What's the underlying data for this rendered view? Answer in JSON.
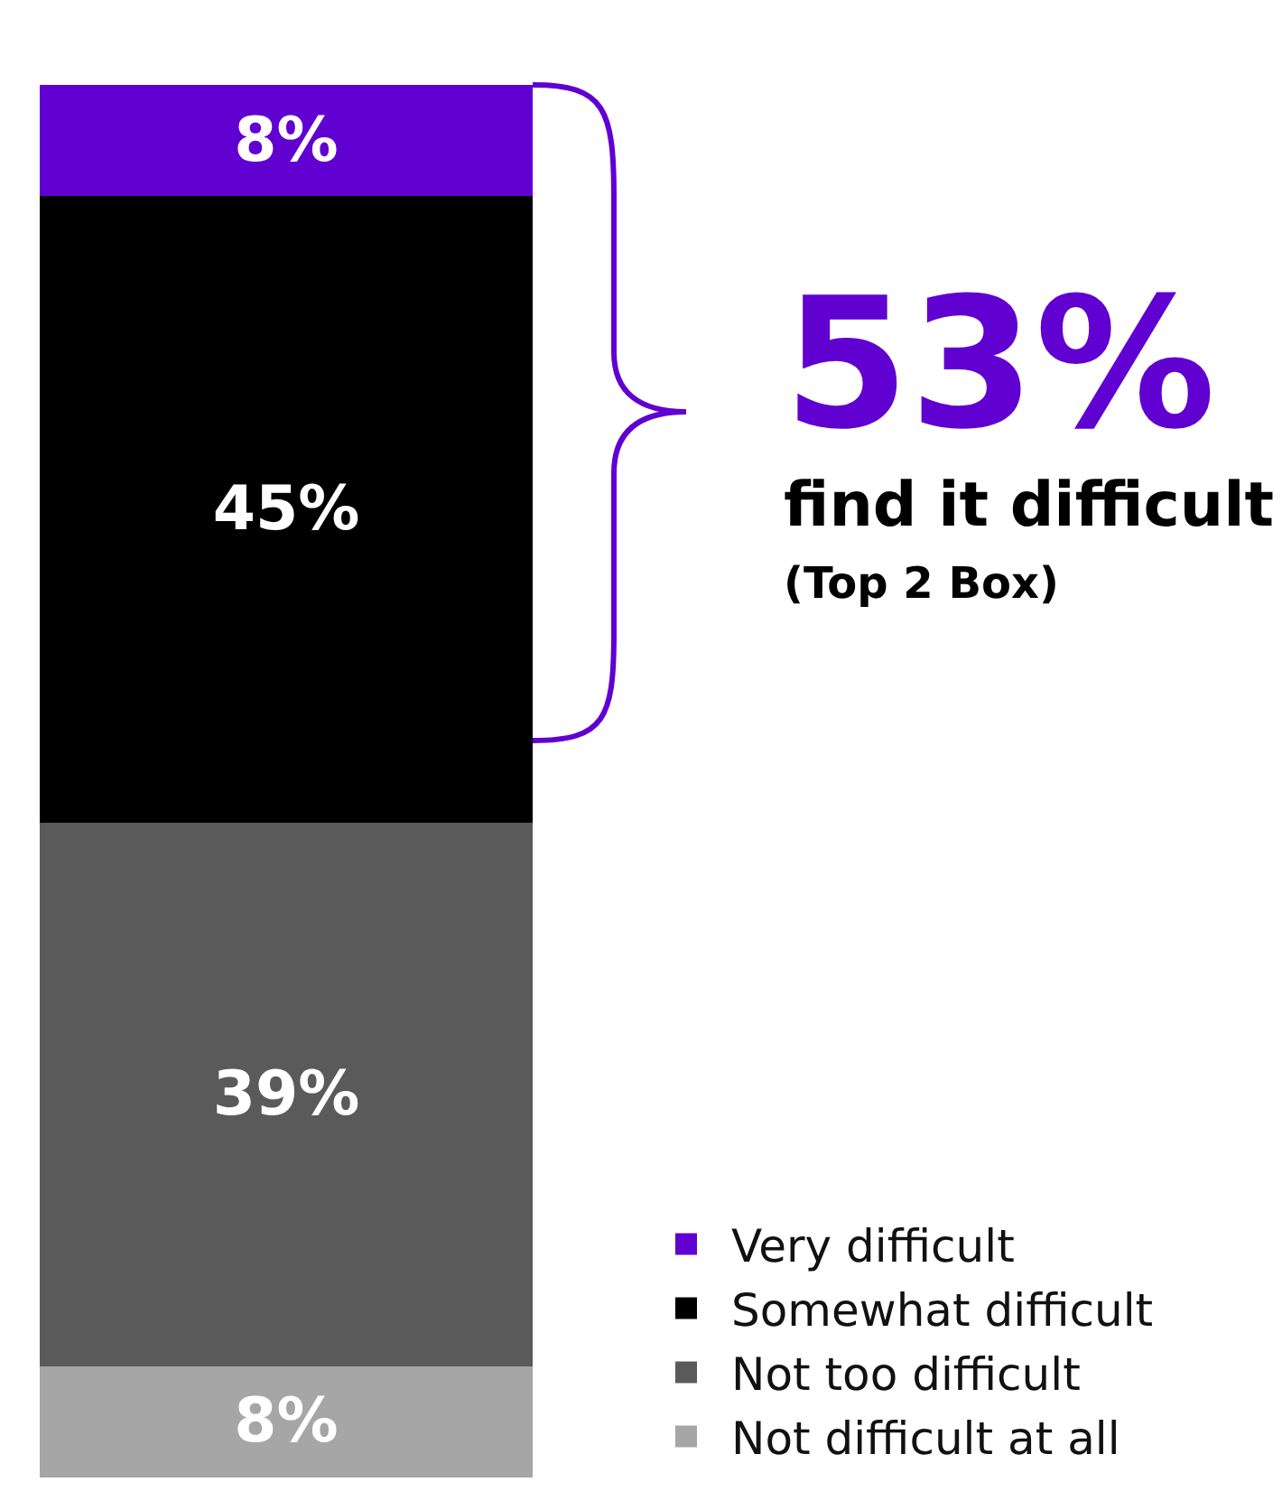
{
  "chart_data": {
    "type": "bar",
    "stacked": true,
    "categories": [
      null
    ],
    "ylim": [
      0,
      100
    ],
    "grid": false,
    "legend": "bottom right",
    "series": [
      {
        "name": "Not difficult at all",
        "color": "#a6a6a6",
        "values": [
          8
        ],
        "value_labels": [
          "8%"
        ]
      },
      {
        "name": "Not too difficult",
        "color": "#5a5a5a",
        "values": [
          39
        ],
        "value_labels": [
          "39%"
        ]
      },
      {
        "name": "Somewhat difficult",
        "color": "#000000",
        "values": [
          45
        ],
        "value_labels": [
          "45%"
        ]
      },
      {
        "name": "Very difficult",
        "color": "#6001d2",
        "values": [
          8
        ],
        "value_labels": [
          "8%"
        ]
      }
    ],
    "annotations": [
      "53%",
      "find it difficult",
      "(Top 2 Box)"
    ]
  }
}
